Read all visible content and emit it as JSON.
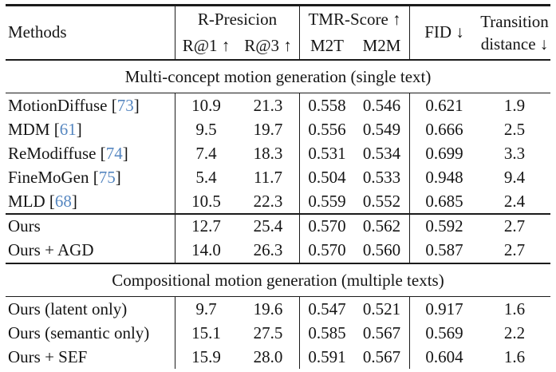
{
  "colors": {
    "text": "#151515",
    "citation": "#5586c0",
    "rule": "#1b1b1b",
    "background": "#ffffff"
  },
  "header": {
    "methods": "Methods",
    "r_precision_title": "R-Presicion",
    "r1": "R@1 ↑",
    "r3": "R@3 ↑",
    "tmr_title": "TMR-Score ↑",
    "m2t": "M2T",
    "m2m": "M2M",
    "fid": "FID ↓",
    "transition_line1": "Transition",
    "transition_line2": "distance ↓"
  },
  "sections": [
    {
      "title": "Multi-concept motion generation (single text)",
      "groups": [
        {
          "rows": [
            {
              "label": "MotionDiffuse [",
              "cite": "73",
              "end": "]",
              "values": [
                "10.9",
                "21.3",
                "0.558",
                "0.546",
                "0.621",
                "1.9"
              ]
            },
            {
              "label": "MDM [",
              "cite": "61",
              "end": "]",
              "values": [
                "9.5",
                "19.7",
                "0.556",
                "0.549",
                "0.666",
                "2.5"
              ]
            },
            {
              "label": "ReModiffuse [",
              "cite": "74",
              "end": "]",
              "values": [
                "7.4",
                "18.3",
                "0.531",
                "0.534",
                "0.699",
                "3.3"
              ]
            },
            {
              "label": "FineMoGen [",
              "cite": "75",
              "end": "]",
              "values": [
                "5.4",
                "11.7",
                "0.504",
                "0.533",
                "0.948",
                "9.4"
              ]
            },
            {
              "label": "MLD [",
              "cite": "68",
              "end": "]",
              "values": [
                "10.5",
                "22.3",
                "0.559",
                "0.552",
                "0.685",
                "2.4"
              ]
            }
          ]
        },
        {
          "rows": [
            {
              "label": "Ours",
              "cite": "",
              "end": "",
              "values": [
                "12.7",
                "25.4",
                "0.570",
                "0.562",
                "0.592",
                "2.7"
              ]
            },
            {
              "label": "Ours + AGD",
              "cite": "",
              "end": "",
              "values": [
                "14.0",
                "26.3",
                "0.570",
                "0.560",
                "0.587",
                "2.7"
              ]
            }
          ]
        }
      ]
    },
    {
      "title": "Compositional motion generation (multiple texts)",
      "groups": [
        {
          "rows": [
            {
              "label": "Ours (latent only)",
              "cite": "",
              "end": "",
              "values": [
                "9.7",
                "19.6",
                "0.547",
                "0.521",
                "0.917",
                "1.6"
              ]
            },
            {
              "label": "Ours (semantic only)",
              "cite": "",
              "end": "",
              "values": [
                "15.1",
                "27.5",
                "0.585",
                "0.567",
                "0.569",
                "2.2"
              ]
            },
            {
              "label": "Ours + SEF",
              "cite": "",
              "end": "",
              "values": [
                "15.9",
                "28.0",
                "0.591",
                "0.567",
                "0.604",
                "1.6"
              ]
            }
          ]
        }
      ]
    }
  ]
}
